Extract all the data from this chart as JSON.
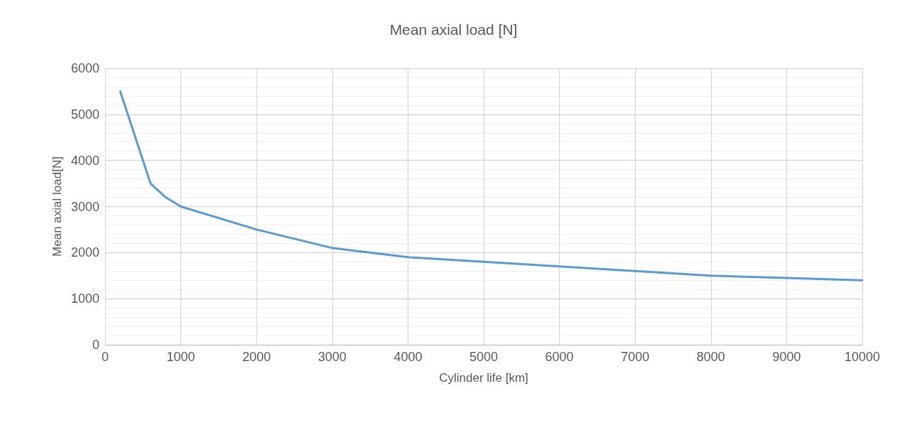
{
  "chart_data": {
    "type": "line",
    "title": "Mean axial load [N]",
    "xlabel": "Cylinder life [km]",
    "ylabel": "Mean axial load[N]",
    "x": [
      200,
      600,
      800,
      1000,
      2000,
      3000,
      4000,
      5000,
      6000,
      7000,
      8000,
      9000,
      10000
    ],
    "series": [
      {
        "color": "#5b9bd5",
        "values": [
          5500,
          3500,
          3200,
          3000,
          2500,
          2100,
          1900,
          1800,
          1700,
          1600,
          1500,
          1450,
          1400
        ]
      }
    ],
    "xlim": [
      0,
      10000
    ],
    "xticks": [
      0,
      1000,
      2000,
      3000,
      4000,
      5000,
      6000,
      7000,
      8000,
      9000,
      10000
    ],
    "ylim": [
      0,
      6000
    ],
    "yticks": [
      0,
      1000,
      2000,
      3000,
      4000,
      5000,
      6000
    ],
    "grid": true,
    "marker": "none",
    "line_style": "solid"
  }
}
